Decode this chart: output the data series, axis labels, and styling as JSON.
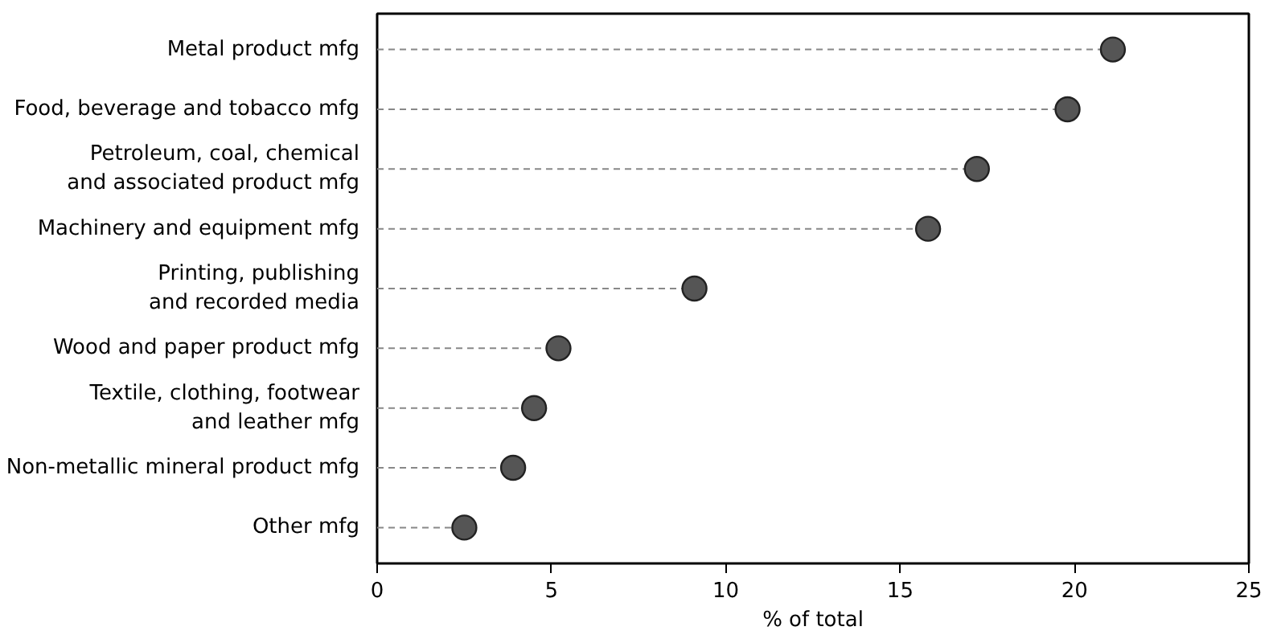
{
  "chart_data": {
    "type": "lollipop",
    "orientation": "horizontal",
    "xlabel": "% of total",
    "categories": [
      "Metal product mfg",
      "Food, beverage and tobacco mfg",
      "Petroleum, coal, chemical\nand associated product mfg",
      "Machinery and equipment mfg",
      "Printing, publishing\nand recorded media",
      "Wood and paper product mfg",
      "Textile, clothing, footwear\nand leather mfg",
      "Non-metallic mineral product mfg",
      "Other mfg"
    ],
    "values": [
      21.1,
      19.8,
      17.2,
      15.8,
      9.1,
      5.2,
      4.5,
      3.9,
      2.5
    ],
    "color": "#555555",
    "line_style": "dashed",
    "marker": "circle",
    "xlim": [
      0,
      25
    ],
    "xticks": [
      0,
      5,
      10,
      15,
      20,
      25
    ],
    "grid": false
  }
}
